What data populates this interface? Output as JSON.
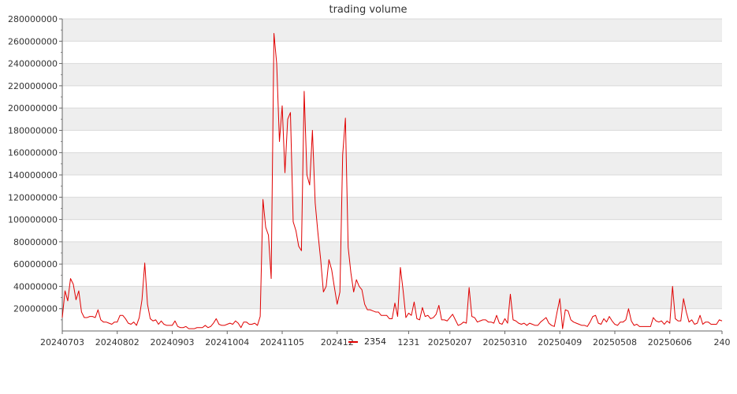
{
  "chart_data": {
    "type": "line",
    "title": "trading volume",
    "xlabel": "",
    "ylabel": "",
    "ylim": [
      0,
      280000000
    ],
    "yticks": [
      20000000,
      40000000,
      60000000,
      80000000,
      100000000,
      120000000,
      140000000,
      160000000,
      180000000,
      200000000,
      220000000,
      240000000,
      260000000,
      280000000
    ],
    "ytick_labels": [
      "20000000",
      "40000000",
      "60000000",
      "80000000",
      "100000000",
      "120000000",
      "140000000",
      "160000000",
      "180000000",
      "200000000",
      "220000000",
      "240000000",
      "260000000",
      "280000000"
    ],
    "xtick_labels": [
      "20240703",
      "20240802",
      "20240903",
      "20241004",
      "20241105",
      "202412",
      "1231",
      "20250207",
      "20250310",
      "20250409",
      "20250508",
      "20250606",
      "240"
    ],
    "xtick_index": [
      0,
      20,
      40,
      60,
      80,
      100,
      126,
      141,
      161,
      181,
      201,
      221,
      240
    ],
    "grid": "horizontal bands",
    "legend": {
      "position": "bottom-center",
      "label": "2354"
    },
    "colors": {
      "series": "#e00000",
      "band": "#eeeeee",
      "grid": "#d9d9d9"
    },
    "series": [
      {
        "name": "2354",
        "values": [
          12000000,
          36000000,
          27000000,
          47000000,
          42000000,
          28000000,
          36000000,
          17000000,
          12000000,
          12000000,
          13000000,
          13000000,
          12000000,
          19000000,
          10000000,
          8000000,
          8000000,
          7000000,
          6000000,
          8000000,
          8000000,
          14000000,
          14000000,
          11000000,
          7000000,
          6000000,
          8000000,
          5000000,
          12000000,
          28000000,
          61000000,
          24000000,
          11000000,
          9000000,
          10000000,
          6000000,
          9000000,
          6000000,
          5000000,
          5000000,
          5000000,
          9000000,
          4000000,
          3000000,
          3000000,
          4000000,
          2000000,
          2000000,
          2000000,
          3000000,
          3000000,
          3000000,
          5000000,
          3000000,
          4000000,
          7000000,
          11000000,
          6000000,
          5000000,
          5000000,
          6000000,
          7000000,
          6000000,
          9000000,
          7000000,
          3000000,
          8000000,
          8000000,
          6000000,
          6000000,
          7000000,
          5000000,
          13000000,
          118000000,
          93000000,
          86000000,
          47000000,
          267000000,
          240000000,
          170000000,
          202000000,
          142000000,
          190000000,
          196000000,
          98000000,
          90000000,
          76000000,
          72000000,
          215000000,
          140000000,
          131000000,
          180000000,
          115000000,
          88000000,
          64000000,
          35000000,
          40000000,
          64000000,
          55000000,
          39000000,
          24000000,
          35000000,
          158000000,
          191000000,
          75000000,
          52000000,
          35000000,
          46000000,
          40000000,
          37000000,
          24000000,
          19000000,
          19000000,
          18000000,
          17000000,
          17000000,
          14000000,
          14000000,
          14000000,
          11000000,
          11000000,
          25000000,
          13000000,
          57000000,
          36000000,
          12000000,
          16000000,
          14000000,
          26000000,
          11000000,
          10000000,
          21000000,
          13000000,
          14000000,
          11000000,
          12000000,
          15000000,
          23000000,
          10000000,
          10000000,
          9000000,
          12000000,
          15000000,
          10000000,
          5000000,
          6000000,
          8000000,
          7000000,
          39000000,
          13000000,
          12000000,
          8000000,
          9000000,
          10000000,
          10000000,
          8000000,
          8000000,
          7000000,
          14000000,
          7000000,
          6000000,
          11000000,
          7000000,
          33000000,
          10000000,
          9000000,
          7000000,
          6000000,
          7000000,
          5000000,
          7000000,
          6000000,
          5000000,
          5000000,
          8000000,
          10000000,
          12000000,
          7000000,
          5000000,
          4000000,
          17000000,
          29000000,
          2000000,
          19000000,
          18000000,
          10000000,
          8000000,
          7000000,
          6000000,
          5000000,
          5000000,
          4000000,
          8000000,
          13000000,
          14000000,
          7000000,
          6000000,
          11000000,
          8000000,
          13000000,
          9000000,
          6000000,
          5000000,
          8000000,
          8000000,
          10000000,
          20000000,
          9000000,
          5000000,
          6000000,
          4000000,
          4000000,
          4000000,
          4000000,
          4000000,
          12000000,
          9000000,
          8000000,
          9000000,
          6000000,
          9000000,
          7000000,
          40000000,
          11000000,
          9000000,
          9000000,
          29000000,
          17000000,
          8000000,
          10000000,
          6000000,
          7000000,
          14000000,
          6000000,
          8000000,
          8000000,
          6000000,
          6000000,
          6000000,
          10000000,
          9000000
        ]
      }
    ]
  }
}
